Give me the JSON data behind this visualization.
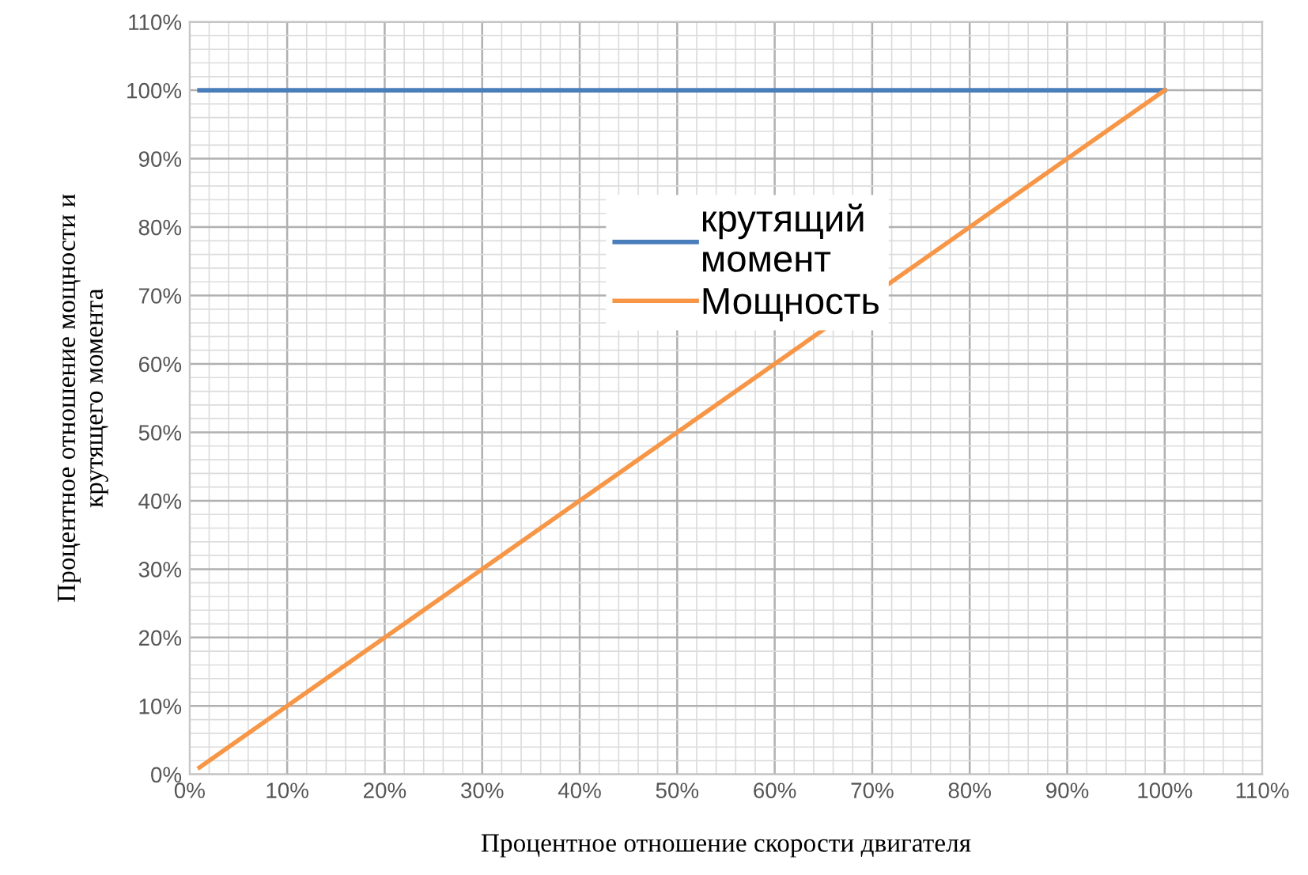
{
  "chart_data": {
    "type": "line",
    "xlabel": "Процентное отношение скорости двигателя",
    "ylabel": "Процентное отношение мощности и\nкрутящего момента",
    "x": [
      1,
      100
    ],
    "series": [
      {
        "name": "крутящий\nмомент",
        "color": "#4a7ebb",
        "values": [
          100,
          100
        ]
      },
      {
        "name": "Мощность",
        "color": "#f79646",
        "values": [
          1,
          100
        ]
      }
    ],
    "xlim": [
      0,
      110
    ],
    "ylim": [
      0,
      110
    ],
    "xticks": [
      {
        "value": 0,
        "label": "0%"
      },
      {
        "value": 10,
        "label": "10%"
      },
      {
        "value": 20,
        "label": "20%"
      },
      {
        "value": 30,
        "label": "30%"
      },
      {
        "value": 40,
        "label": "40%"
      },
      {
        "value": 50,
        "label": "50%"
      },
      {
        "value": 60,
        "label": "60%"
      },
      {
        "value": 70,
        "label": "70%"
      },
      {
        "value": 80,
        "label": "80%"
      },
      {
        "value": 90,
        "label": "90%"
      },
      {
        "value": 100,
        "label": "100%"
      },
      {
        "value": 110,
        "label": "110%"
      }
    ],
    "yticks": [
      {
        "value": 0,
        "label": "0%"
      },
      {
        "value": 10,
        "label": "10%"
      },
      {
        "value": 20,
        "label": "20%"
      },
      {
        "value": 30,
        "label": "30%"
      },
      {
        "value": 40,
        "label": "40%"
      },
      {
        "value": 50,
        "label": "50%"
      },
      {
        "value": 60,
        "label": "60%"
      },
      {
        "value": 70,
        "label": "70%"
      },
      {
        "value": 80,
        "label": "80%"
      },
      {
        "value": 90,
        "label": "90%"
      },
      {
        "value": 100,
        "label": "100%"
      },
      {
        "value": 110,
        "label": "110%"
      }
    ],
    "grid": true,
    "legend": "center",
    "marker": "none",
    "line_style": "solid"
  }
}
